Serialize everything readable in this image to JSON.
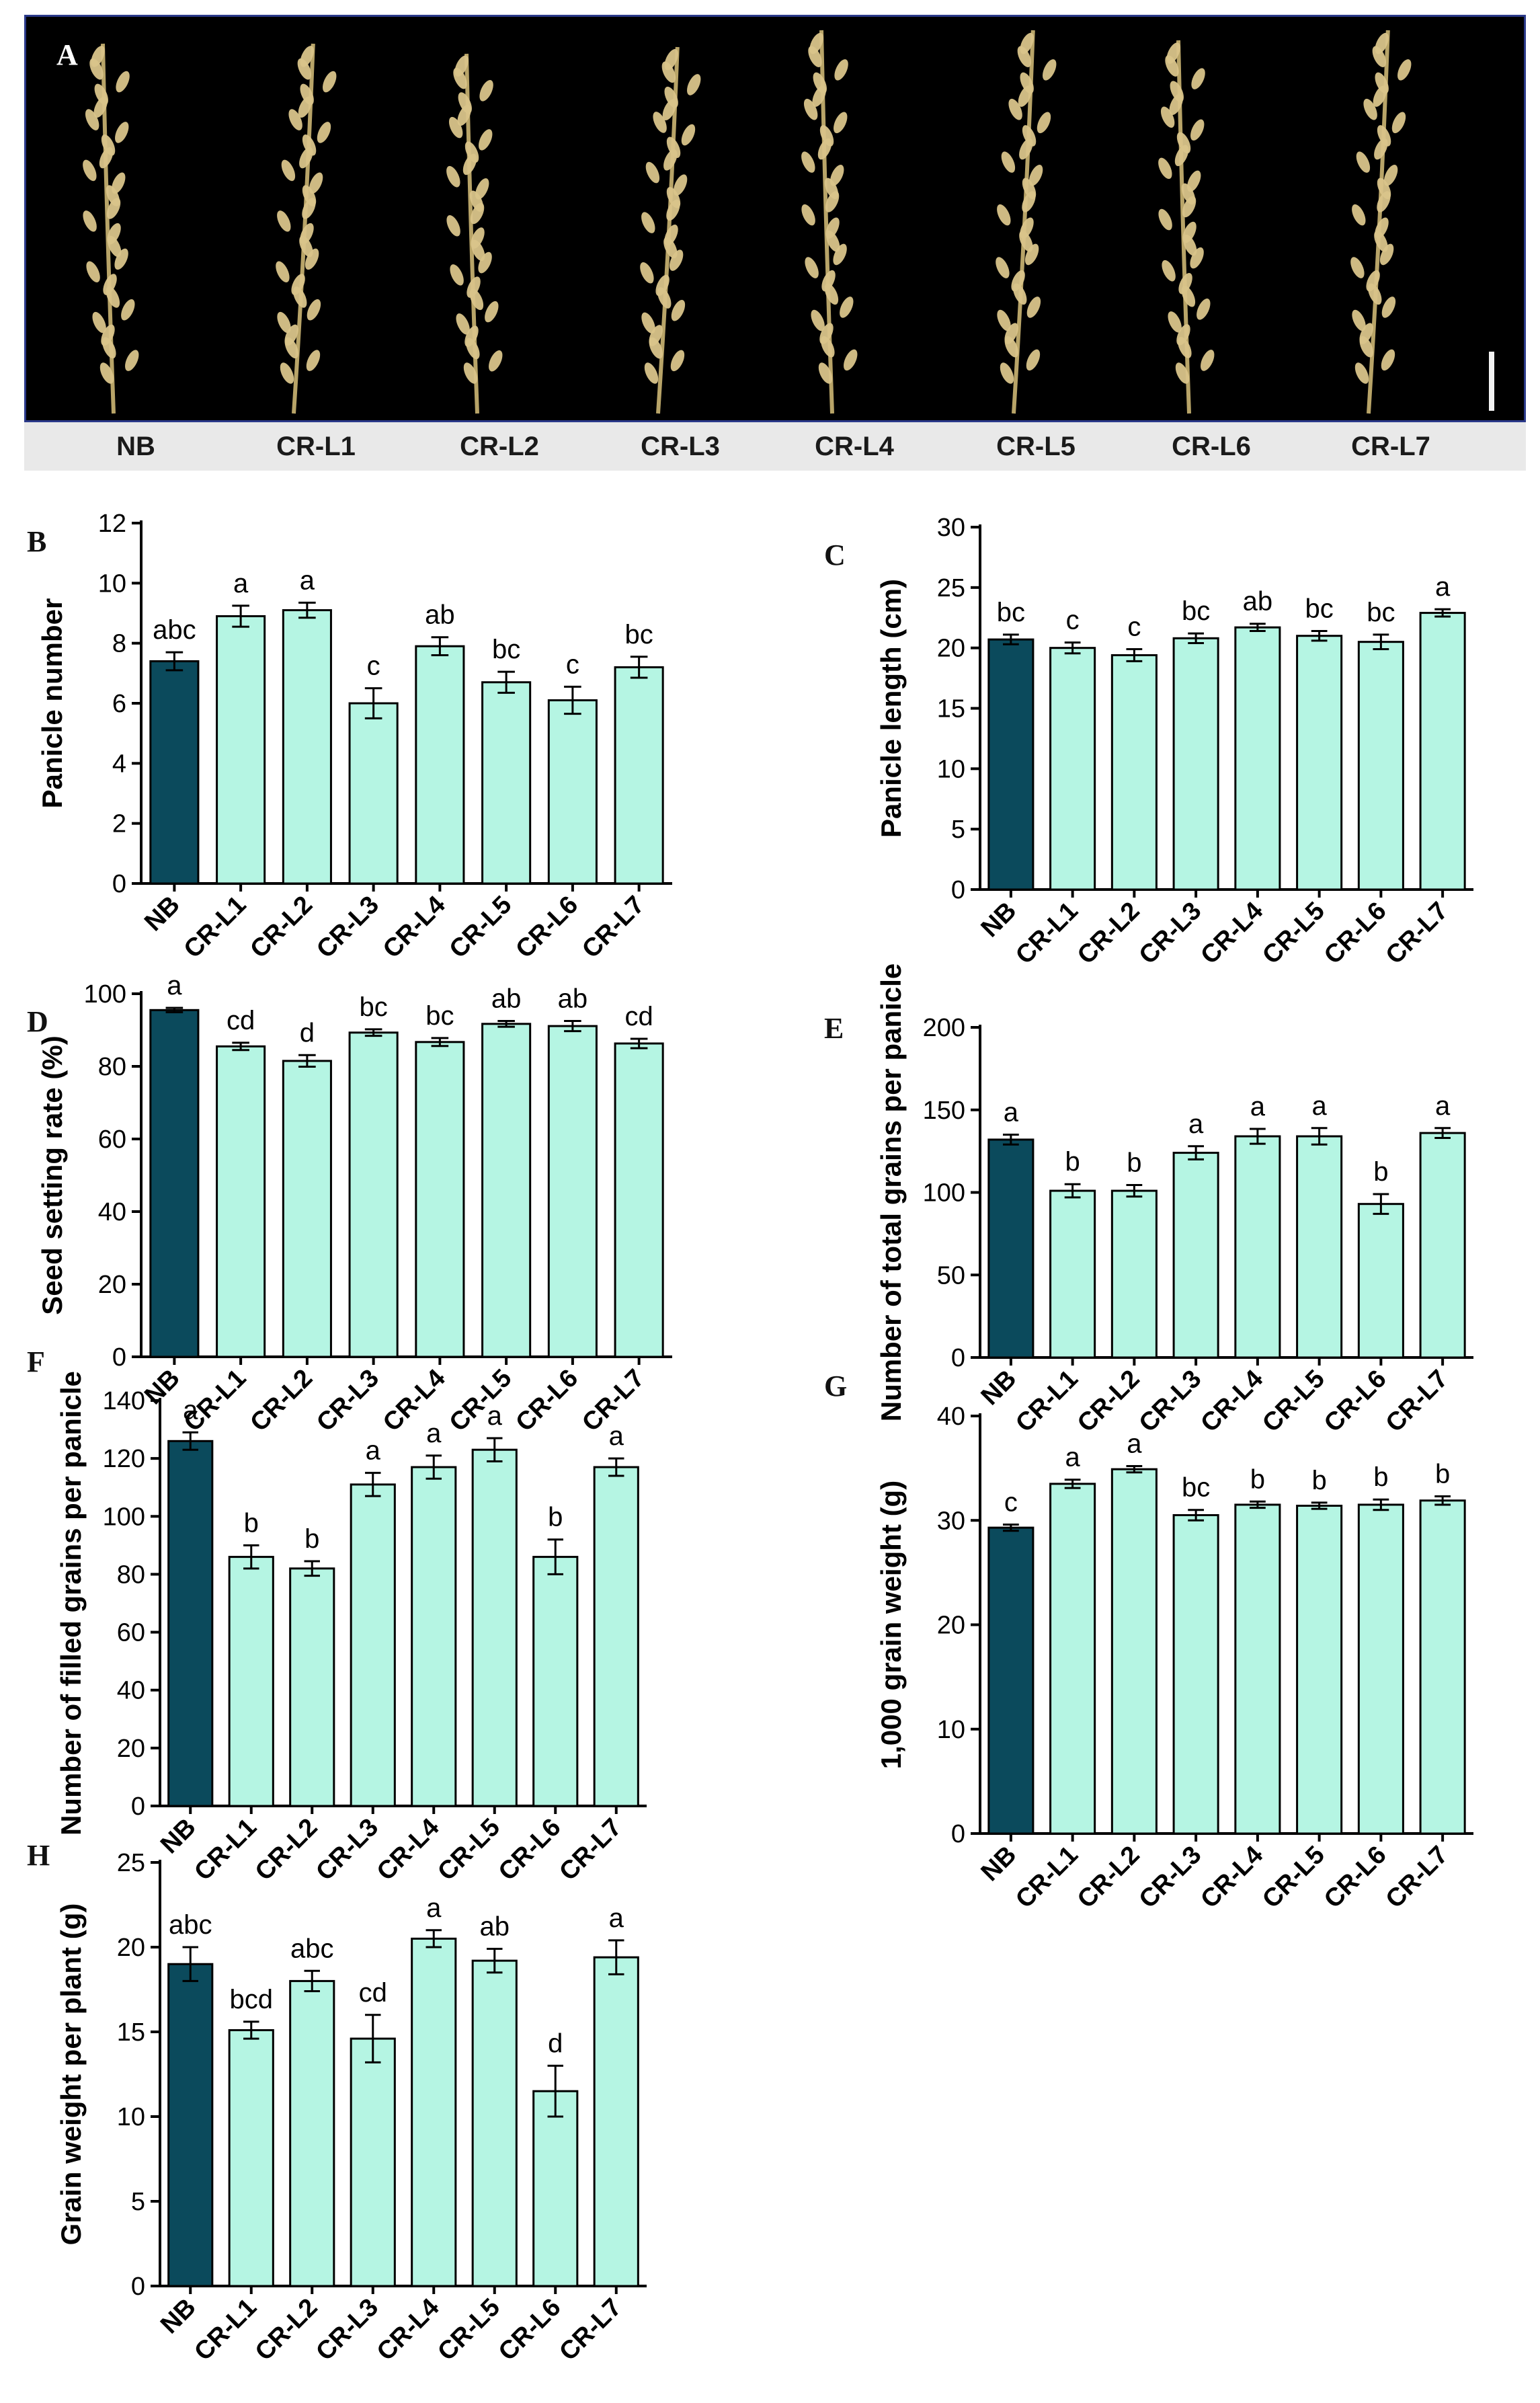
{
  "panel_letters": [
    "A",
    "B",
    "C",
    "D",
    "E",
    "F",
    "G",
    "H"
  ],
  "photo_labels": [
    "NB",
    "CR-L1",
    "CR-L2",
    "CR-L3",
    "CR-L4",
    "CR-L5",
    "CR-L6",
    "CR-L7"
  ],
  "colors": {
    "control": "#0b4a5c",
    "mutant": "#b5f5e3",
    "photo_bg": "#000000",
    "panicle": "#d9c48a"
  },
  "chart_data": [
    {
      "id": "B",
      "type": "bar",
      "title": "",
      "xlabel": "",
      "ylabel": "Panicle number",
      "ylim": [
        0,
        12
      ],
      "yticks": [
        0,
        2,
        4,
        6,
        8,
        10,
        12
      ],
      "categories": [
        "NB",
        "CR-L1",
        "CR-L2",
        "CR-L3",
        "CR-L4",
        "CR-L5",
        "CR-L6",
        "CR-L7"
      ],
      "values": [
        7.4,
        8.9,
        9.1,
        6.0,
        7.9,
        6.7,
        6.1,
        7.2
      ],
      "errors": [
        0.3,
        0.35,
        0.25,
        0.5,
        0.3,
        0.35,
        0.45,
        0.35
      ],
      "letters": [
        "abc",
        "a",
        "a",
        "c",
        "ab",
        "bc",
        "c",
        "bc"
      ]
    },
    {
      "id": "C",
      "type": "bar",
      "title": "",
      "xlabel": "",
      "ylabel": "Panicle length (cm)",
      "ylim": [
        0,
        30
      ],
      "yticks": [
        0,
        5,
        10,
        15,
        20,
        25,
        30
      ],
      "categories": [
        "NB",
        "CR-L1",
        "CR-L2",
        "CR-L3",
        "CR-L4",
        "CR-L5",
        "CR-L6",
        "CR-L7"
      ],
      "values": [
        20.7,
        20.0,
        19.4,
        20.8,
        21.7,
        21.0,
        20.5,
        22.9
      ],
      "errors": [
        0.4,
        0.45,
        0.5,
        0.4,
        0.3,
        0.4,
        0.6,
        0.3
      ],
      "letters": [
        "bc",
        "c",
        "c",
        "bc",
        "ab",
        "bc",
        "bc",
        "a"
      ]
    },
    {
      "id": "D",
      "type": "bar",
      "title": "",
      "xlabel": "",
      "ylabel": "Seed setting rate (%)",
      "ylim": [
        0,
        100
      ],
      "yticks": [
        0,
        20,
        40,
        60,
        80,
        100
      ],
      "categories": [
        "NB",
        "CR-L1",
        "CR-L2",
        "CR-L3",
        "CR-L4",
        "CR-L5",
        "CR-L6",
        "CR-L7"
      ],
      "values": [
        95.5,
        85.5,
        81.5,
        89.3,
        86.7,
        91.7,
        91.1,
        86.3
      ],
      "errors": [
        0.6,
        1.0,
        1.6,
        0.9,
        1.1,
        0.8,
        1.4,
        1.3
      ],
      "letters": [
        "a",
        "cd",
        "d",
        "bc",
        "bc",
        "ab",
        "ab",
        "cd"
      ]
    },
    {
      "id": "E",
      "type": "bar",
      "title": "",
      "xlabel": "",
      "ylabel": "Number of total grains per panicle",
      "ylim": [
        0,
        200
      ],
      "yticks": [
        0,
        50,
        100,
        150,
        200
      ],
      "categories": [
        "NB",
        "CR-L1",
        "CR-L2",
        "CR-L3",
        "CR-L4",
        "CR-L5",
        "CR-L6",
        "CR-L7"
      ],
      "values": [
        132,
        101,
        101,
        124,
        134,
        134,
        93,
        136
      ],
      "errors": [
        3,
        4,
        3.5,
        4,
        4.5,
        5,
        6,
        3
      ],
      "letters": [
        "a",
        "b",
        "b",
        "a",
        "a",
        "a",
        "b",
        "a"
      ]
    },
    {
      "id": "F",
      "type": "bar",
      "title": "",
      "xlabel": "",
      "ylabel": "Number of filled grains per panicle",
      "ylim": [
        0,
        140
      ],
      "yticks": [
        0,
        20,
        40,
        60,
        80,
        100,
        120,
        140
      ],
      "categories": [
        "NB",
        "CR-L1",
        "CR-L2",
        "CR-L3",
        "CR-L4",
        "CR-L5",
        "CR-L6",
        "CR-L7"
      ],
      "values": [
        126,
        86,
        82,
        111,
        117,
        123,
        86,
        117
      ],
      "errors": [
        3,
        4,
        2.5,
        4,
        4,
        4,
        6,
        3
      ],
      "letters": [
        "a",
        "b",
        "b",
        "a",
        "a",
        "a",
        "b",
        "a"
      ]
    },
    {
      "id": "G",
      "type": "bar",
      "title": "",
      "xlabel": "",
      "ylabel": "1,000 grain weight (g)",
      "ylim": [
        0,
        40
      ],
      "yticks": [
        0,
        10,
        20,
        30,
        40
      ],
      "categories": [
        "NB",
        "CR-L1",
        "CR-L2",
        "CR-L3",
        "CR-L4",
        "CR-L5",
        "CR-L6",
        "CR-L7"
      ],
      "values": [
        29.3,
        33.5,
        34.9,
        30.5,
        31.5,
        31.4,
        31.5,
        31.9
      ],
      "errors": [
        0.3,
        0.4,
        0.3,
        0.5,
        0.3,
        0.3,
        0.5,
        0.4
      ],
      "letters": [
        "c",
        "a",
        "a",
        "bc",
        "b",
        "b",
        "b",
        "b"
      ]
    },
    {
      "id": "H",
      "type": "bar",
      "title": "",
      "xlabel": "",
      "ylabel": "Grain weight per plant (g)",
      "ylim": [
        0,
        25
      ],
      "yticks": [
        0,
        5,
        10,
        15,
        20,
        25
      ],
      "categories": [
        "NB",
        "CR-L1",
        "CR-L2",
        "CR-L3",
        "CR-L4",
        "CR-L5",
        "CR-L6",
        "CR-L7"
      ],
      "values": [
        19.0,
        15.1,
        18.0,
        14.6,
        20.5,
        19.2,
        11.5,
        19.4
      ],
      "errors": [
        1.0,
        0.5,
        0.6,
        1.4,
        0.5,
        0.7,
        1.5,
        1.0
      ],
      "letters": [
        "abc",
        "bcd",
        "abc",
        "cd",
        "a",
        "ab",
        "d",
        "a"
      ]
    }
  ]
}
